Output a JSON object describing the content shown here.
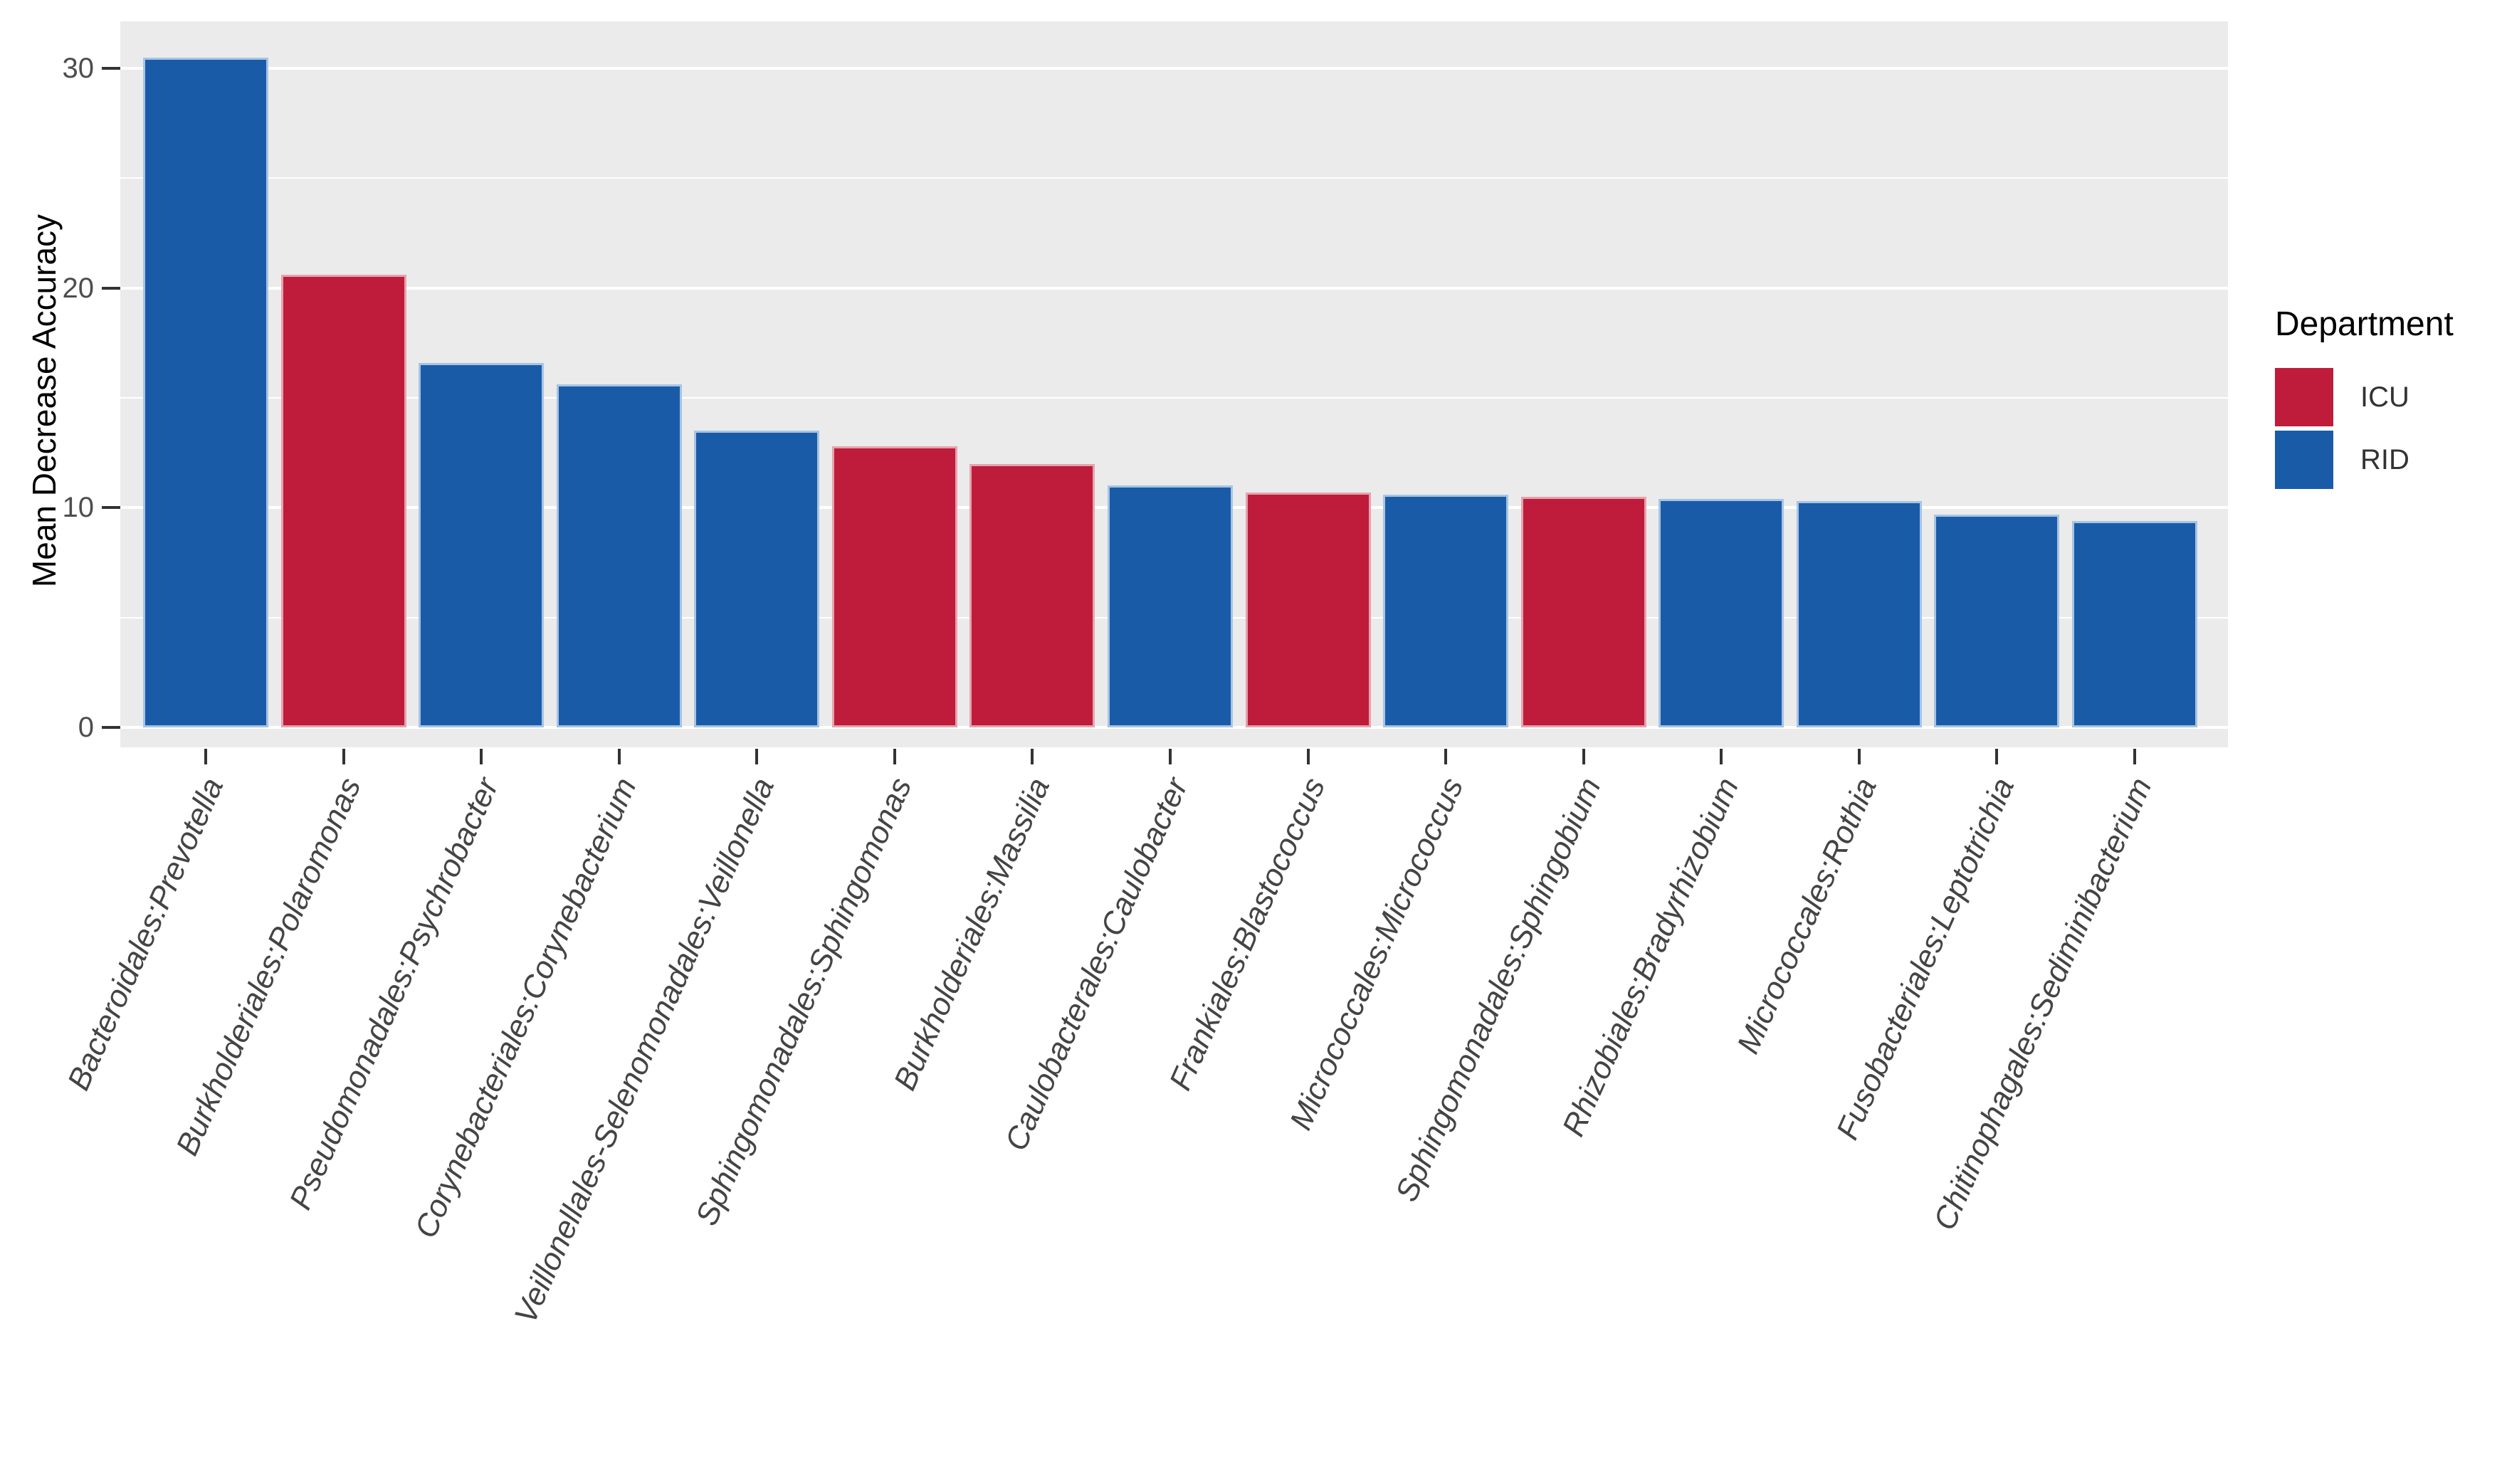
{
  "chart_data": {
    "type": "bar",
    "title": "",
    "xlabel": "",
    "ylabel": "Mean Decrease Accuracy",
    "ylim": [
      0,
      32
    ],
    "yticks": [
      0,
      10,
      20,
      30
    ],
    "yticks_minor": [
      5,
      15,
      25
    ],
    "grid": "white major+minor horizontal gridlines on grey panel",
    "legend_position": "right",
    "legend_title": "Department",
    "categories": [
      "Bacteroidales:Prevotella",
      "Burkholderiales:Polaromonas",
      "Pseudomonadales:Psychrobacter",
      "Corynebacteriales:Corynebacterium",
      "Veillonellales-Selenomonadales:Veillonella",
      "Sphingomonadales:Sphingomonas",
      "Burkholderiales:Massilia",
      "Caulobacterales:Caulobacter",
      "Frankiales:Blastococcus",
      "Micrococcales:Micrococcus",
      "Sphingomonadales:Sphingobium",
      "Rhizobiales:Bradyrhizobium",
      "Micrococcales:Rothia",
      "Fusobacteriales:Leptotrichia",
      "Chitinophagales:Sediminibacterium"
    ],
    "values": [
      30.5,
      20.6,
      16.6,
      15.6,
      13.5,
      12.8,
      12.0,
      11.0,
      10.7,
      10.6,
      10.5,
      10.4,
      10.3,
      9.7,
      9.4
    ],
    "departments": [
      "RID",
      "ICU",
      "RID",
      "RID",
      "RID",
      "ICU",
      "ICU",
      "RID",
      "ICU",
      "RID",
      "ICU",
      "RID",
      "RID",
      "RID",
      "RID"
    ],
    "department_colors": {
      "ICU": "#be1c3a",
      "RID": "#1a5ba8"
    },
    "department_border_colors": {
      "ICU": "#e5a3ae",
      "RID": "#a7c4e4"
    }
  },
  "y_axis": {
    "title": "Mean Decrease Accuracy",
    "tick_labels": [
      "0",
      "10",
      "20",
      "30"
    ]
  },
  "legend": {
    "title": "Department",
    "items": [
      {
        "label": "ICU",
        "color": "#be1c3a"
      },
      {
        "label": "RID",
        "color": "#1a5ba8"
      }
    ]
  },
  "panel": {
    "background": "#ebebeb",
    "gridline_color": "#ffffff",
    "tick_color": "#333333",
    "tick_label_color": "#4d4d4d"
  }
}
